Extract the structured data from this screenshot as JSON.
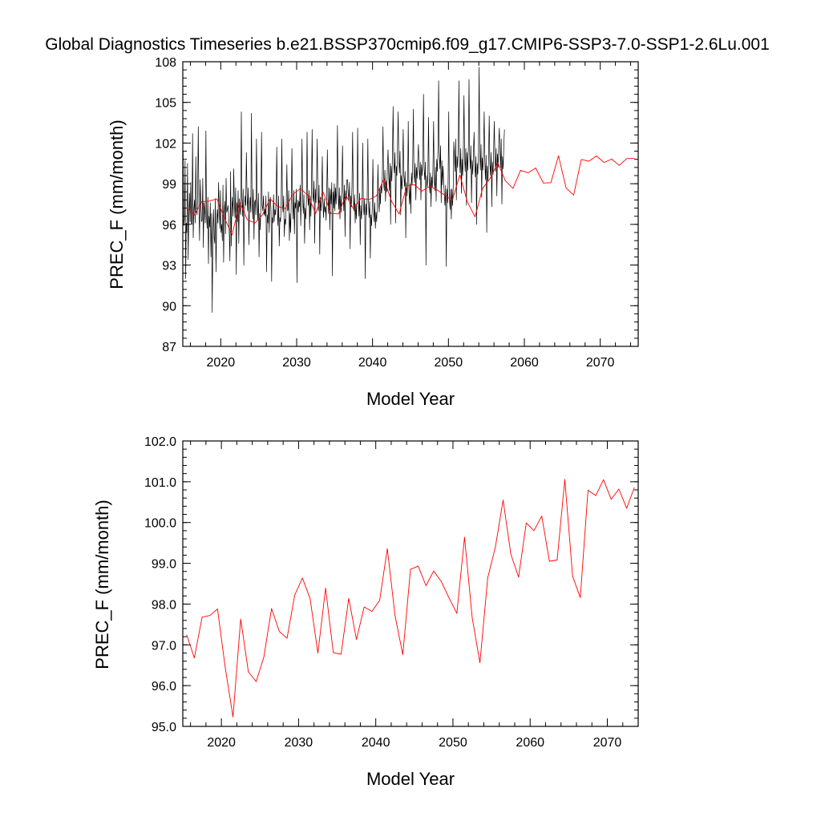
{
  "title": "Global Diagnostics Timeseries b.e21.BSSP370cmip6.f09_g17.CMIP6-SSP3-7.0-SSP1-2.6Lu.001",
  "colors": {
    "monthly": "#000000",
    "annual": "#ff0000"
  },
  "chart_data": [
    {
      "type": "line",
      "xlabel": "Model Year",
      "ylabel": "PREC_F (mm/month)",
      "xlim": [
        2015,
        2075
      ],
      "ylim": [
        87,
        108
      ],
      "xticks": [
        2020,
        2030,
        2040,
        2050,
        2060,
        2070
      ],
      "yticks": [
        "87",
        "90",
        "93",
        "96",
        "99",
        "102",
        "105",
        "108"
      ],
      "series": [
        {
          "color": "#000000",
          "x_start": 2015.0417,
          "x_step": 0.0833333,
          "values": [
            101.4,
            95.9,
            96.4,
            100.7,
            92.0,
            96.1,
            95.4,
            100.5,
            93.4,
            96.4,
            98.3,
            96.2,
            99.1,
            96.0,
            96.0,
            102.7,
            95.0,
            97.1,
            97.8,
            96.1,
            101.0,
            97.1,
            96.7,
            98.6,
            103.2,
            97.4,
            94.8,
            99.3,
            97.6,
            96.2,
            96.3,
            99.4,
            94.3,
            97.6,
            97.1,
            96.1,
            102.9,
            96.5,
            95.7,
            98.0,
            93.1,
            96.6,
            95.8,
            97.6,
            93.6,
            96.8,
            89.5,
            95.4,
            97.1,
            95.0,
            94.6,
            97.9,
            92.5,
            95.9,
            97.1,
            96.1,
            99.1,
            97.1,
            95.7,
            98.5,
            95.4,
            96.0,
            94.8,
            98.9,
            93.2,
            96.9,
            97.7,
            95.3,
            99.4,
            96.9,
            97.1,
            97.4,
            96.6,
            95.2,
            93.3,
            99.9,
            94.4,
            97.1,
            98.0,
            96.6,
            100.1,
            97.5,
            96.5,
            98.7,
            92.3,
            97.6,
            96.2,
            98.5,
            94.6,
            97.9,
            97.1,
            96.7,
            104.3,
            98.0,
            96.6,
            98.6,
            93.0,
            97.0,
            98.1,
            97.4,
            101.3,
            98.2,
            97.0,
            98.7,
            94.5,
            97.2,
            98.0,
            96.9,
            104.2,
            97.6,
            96.4,
            98.6,
            94.9,
            97.6,
            97.8,
            96.7,
            102.3,
            97.8,
            96.3,
            98.3,
            93.6,
            96.8,
            95.6,
            97.4,
            102.8,
            97.4,
            97.0,
            98.1,
            96.7,
            97.1,
            96.6,
            98.1,
            92.5,
            96.7,
            96.1,
            98.4,
            95.4,
            97.5,
            98.0,
            96.9,
            91.8,
            96.5,
            96.1,
            98.2,
            96.2,
            97.1,
            96.7,
            98.0,
            101.7,
            97.0,
            95.9,
            98.1,
            94.4,
            96.5,
            96.2,
            97.5,
            102.3,
            97.4,
            96.9,
            98.1,
            95.1,
            96.4,
            96.0,
            97.5,
            100.4,
            97.0,
            97.1,
            98.5,
            94.8,
            96.8,
            95.4,
            97.8,
            101.6,
            97.6,
            96.4,
            98.5,
            95.3,
            97.6,
            97.2,
            98.6,
            91.7,
            97.8,
            96.9,
            97.7,
            97.3,
            98.9,
            95.9,
            98.3,
            102.3,
            97.7,
            96.8,
            98.2,
            94.6,
            97.2,
            96.4,
            97.7,
            102.8,
            98.1,
            97.4,
            98.5,
            95.6,
            98.1,
            96.6,
            98.8,
            103.0,
            98.2,
            97.7,
            99.2,
            94.6,
            98.6,
            97.6,
            99.4,
            102.3,
            98.6,
            97.0,
            98.9,
            93.8,
            98.0,
            97.0,
            98.0,
            101.0,
            97.7,
            96.5,
            97.9,
            96.9,
            97.3,
            96.3,
            98.3,
            101.5,
            97.8,
            96.8,
            98.7,
            95.6,
            98.6,
            97.5,
            99.1,
            92.2,
            98.4,
            97.2,
            99.0,
            97.0,
            98.7,
            97.5,
            99.3,
            103.3,
            98.2,
            97.1,
            98.7,
            96.4,
            98.1,
            96.9,
            98.8,
            101.8,
            98.3,
            97.0,
            98.9,
            95.1,
            98.5,
            97.8,
            99.3,
            99.3,
            98.3,
            97.8,
            99.1,
            94.2,
            98.1,
            97.3,
            98.8,
            102.8,
            98.2,
            97.0,
            98.2,
            96.1,
            97.5,
            96.4,
            98.1,
            103.1,
            97.9,
            96.6,
            98.3,
            94.5,
            97.4,
            96.4,
            97.6,
            102.0,
            97.5,
            96.7,
            97.9,
            92.0,
            97.5,
            96.7,
            98.0,
            102.3,
            98.0,
            96.5,
            97.7,
            93.5,
            96.7,
            95.9,
            97.3,
            100.8,
            97.2,
            96.2,
            97.6,
            95.7,
            96.9,
            96.2,
            97.5,
            100.4,
            97.6,
            96.9,
            98.7,
            97.5,
            98.9,
            98.3,
            99.6,
            103.2,
            99.0,
            98.5,
            100.0,
            97.7,
            99.2,
            98.4,
            100.2,
            101.5,
            99.6,
            98.5,
            100.5,
            96.0,
            100.3,
            99.2,
            101.2,
            104.7,
            100.5,
            99.8,
            101.3,
            96.1,
            100.3,
            99.6,
            101.7,
            104.3,
            100.9,
            99.8,
            101.4,
            96.7,
            99.6,
            98.6,
            100.1,
            103.0,
            99.6,
            98.8,
            99.9,
            95.0,
            99.1,
            98.1,
            99.4,
            103.6,
            98.6,
            97.5,
            99.0,
            96.8,
            99.8,
            98.9,
            100.6,
            104.5,
            99.9,
            99.1,
            100.5,
            97.8,
            100.2,
            99.4,
            100.8,
            101.9,
            100.1,
            99.3,
            100.6,
            97.8,
            100.4,
            99.6,
            101.0,
            105.6,
            100.1,
            99.3,
            100.6,
            93.0,
            99.6,
            98.8,
            99.8,
            103.9,
            99.1,
            98.3,
            99.8,
            97.3,
            99.5,
            98.7,
            100.1,
            103.6,
            99.3,
            98.5,
            100.2,
            97.7,
            100.8,
            99.9,
            101.6,
            106.6,
            101.2,
            100.1,
            101.8,
            97.6,
            100.7,
            98.9,
            100.3,
            99.1,
            98.2,
            97.4,
            98.9,
            92.9,
            98.6,
            97.6,
            99.1,
            104.3,
            98.0,
            97.1,
            98.6,
            96.4,
            98.6,
            97.4,
            98.8,
            102.1,
            101.0,
            99.9,
            102.3,
            97.8,
            101.0,
            100.2,
            102.1,
            106.6,
            100.9,
            99.8,
            101.6,
            98.3,
            100.8,
            99.6,
            101.5,
            105.5,
            100.9,
            99.9,
            101.6,
            97.4,
            101.3,
            100.0,
            101.7,
            106.7,
            101.2,
            100.1,
            101.8,
            97.6,
            100.7,
            99.7,
            101.4,
            102.8,
            100.5,
            99.5,
            101.0,
            96.0,
            100.5,
            99.7,
            101.4,
            107.6,
            101.2,
            100.0,
            101.9,
            98.0,
            100.9,
            100.0,
            101.5,
            104.3,
            100.6,
            99.3,
            101.1,
            95.4,
            100.3,
            99.2,
            101.0,
            104.0,
            100.5,
            99.6,
            101.3,
            97.3,
            100.6,
            99.7,
            101.5,
            103.6,
            101.0,
            99.9,
            101.6,
            98.1,
            101.2,
            100.2,
            102.1,
            103.1,
            101.4,
            100.2,
            102.3,
            97.5,
            101.0,
            100.1,
            101.8,
            103.0
          ]
        },
        {
          "color": "#ff0000",
          "x": [
            2015.5,
            2016.5,
            2017.5,
            2018.5,
            2019.5,
            2020.5,
            2021.5,
            2022.5,
            2023.5,
            2024.5,
            2025.5,
            2026.5,
            2027.5,
            2028.5,
            2029.5,
            2030.5,
            2031.5,
            2032.5,
            2033.5,
            2034.5,
            2035.5,
            2036.5,
            2037.5,
            2038.5,
            2039.5,
            2040.5,
            2041.5,
            2042.5,
            2043.5,
            2044.5,
            2045.5,
            2046.5,
            2047.5,
            2048.5,
            2049.5,
            2050.5,
            2051.5,
            2052.5,
            2053.5,
            2054.5,
            2055.5,
            2056.5,
            2057.5,
            2058.5,
            2059.5,
            2060.5,
            2061.5,
            2062.5,
            2063.5,
            2064.5,
            2065.5,
            2066.5,
            2067.5,
            2068.5,
            2069.5,
            2070.5,
            2071.5,
            2072.5,
            2073.5,
            2074.5
          ],
          "values": [
            97.25,
            96.68,
            97.68,
            97.72,
            97.88,
            96.45,
            95.23,
            97.63,
            96.34,
            96.1,
            96.7,
            97.89,
            97.33,
            97.16,
            98.22,
            98.64,
            98.13,
            96.8,
            98.39,
            96.81,
            96.77,
            98.14,
            97.13,
            97.93,
            97.82,
            98.09,
            99.36,
            97.72,
            96.76,
            98.85,
            98.93,
            98.45,
            98.81,
            98.55,
            98.15,
            97.77,
            99.64,
            97.66,
            96.56,
            98.64,
            99.4,
            100.55,
            99.22,
            98.66,
            99.99,
            99.8,
            100.16,
            99.05,
            99.08,
            101.06,
            98.68,
            98.16,
            100.79,
            100.66,
            101.05,
            100.57,
            100.82,
            100.35,
            100.86,
            100.86
          ]
        }
      ]
    },
    {
      "type": "line",
      "xlabel": "Model Year",
      "ylabel": "PREC_F (mm/month)",
      "xlim": [
        2015,
        2074
      ],
      "ylim": [
        95,
        102
      ],
      "xticks": [
        2020,
        2030,
        2040,
        2050,
        2060,
        2070
      ],
      "yticks": [
        "95.0",
        "96.0",
        "97.0",
        "98.0",
        "99.0",
        "100.0",
        "101.0",
        "102.0"
      ],
      "series": [
        {
          "color": "#ff0000",
          "x": [
            2015.5,
            2016.5,
            2017.5,
            2018.5,
            2019.5,
            2020.5,
            2021.5,
            2022.5,
            2023.5,
            2024.5,
            2025.5,
            2026.5,
            2027.5,
            2028.5,
            2029.5,
            2030.5,
            2031.5,
            2032.5,
            2033.5,
            2034.5,
            2035.5,
            2036.5,
            2037.5,
            2038.5,
            2039.5,
            2040.5,
            2041.5,
            2042.5,
            2043.5,
            2044.5,
            2045.5,
            2046.5,
            2047.5,
            2048.5,
            2049.5,
            2050.5,
            2051.5,
            2052.5,
            2053.5,
            2054.5,
            2055.5,
            2056.5,
            2057.5,
            2058.5,
            2059.5,
            2060.5,
            2061.5,
            2062.5,
            2063.5,
            2064.5,
            2065.5,
            2066.5,
            2067.5,
            2068.5,
            2069.5,
            2070.5,
            2071.5,
            2072.5,
            2073.5
          ],
          "values": [
            97.25,
            96.68,
            97.68,
            97.72,
            97.88,
            96.45,
            95.23,
            97.63,
            96.34,
            96.1,
            96.7,
            97.89,
            97.33,
            97.16,
            98.22,
            98.64,
            98.13,
            96.8,
            98.39,
            96.81,
            96.77,
            98.14,
            97.13,
            97.93,
            97.82,
            98.09,
            99.36,
            97.72,
            96.76,
            98.85,
            98.93,
            98.45,
            98.81,
            98.55,
            98.15,
            97.77,
            99.64,
            97.66,
            96.56,
            98.64,
            99.4,
            100.55,
            99.22,
            98.66,
            99.99,
            99.8,
            100.16,
            99.05,
            99.08,
            101.06,
            98.68,
            98.16,
            100.79,
            100.66,
            101.05,
            100.57,
            100.82,
            100.35,
            100.86
          ]
        }
      ]
    }
  ]
}
